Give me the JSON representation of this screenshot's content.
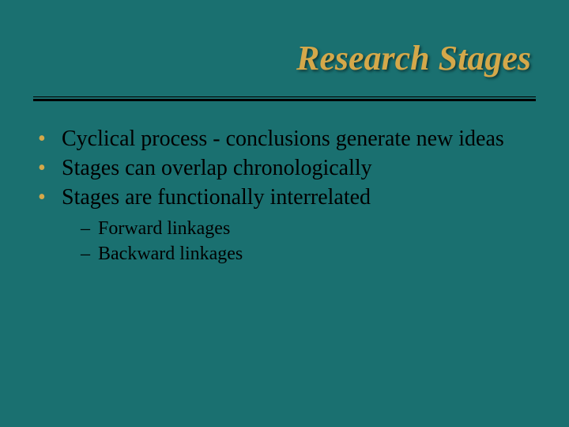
{
  "slide": {
    "title": "Research Stages",
    "background_color": "#1a7070",
    "title_color": "#d4a84a",
    "title_fontsize": 44,
    "title_style": "italic bold",
    "text_color": "#000000",
    "bullet_color": "#d4a84a",
    "body_fontsize": 28,
    "sub_fontsize": 24,
    "divider_color": "#000000",
    "bullets": [
      {
        "text": "Cyclical process - conclusions generate new ideas"
      },
      {
        "text": "Stages can overlap chronologically"
      },
      {
        "text": "Stages are functionally interrelated"
      }
    ],
    "sub_bullets": [
      {
        "text": "Forward linkages"
      },
      {
        "text": "Backward linkages"
      }
    ]
  }
}
